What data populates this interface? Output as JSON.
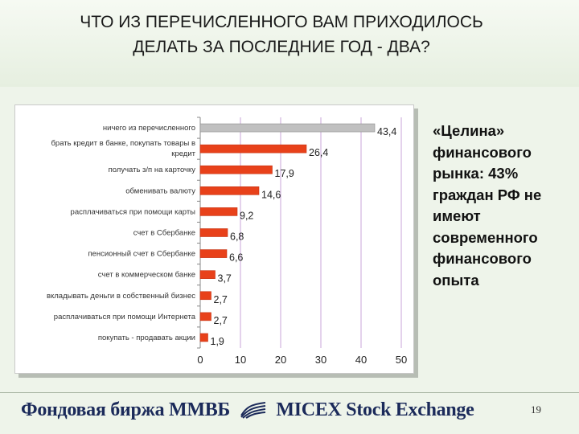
{
  "title_lines": [
    "ЧТО ИЗ ПЕРЕЧИСЛЕННОГО ВАМ ПРИХОДИЛОСЬ",
    "ДЕЛАТЬ ЗА ПОСЛЕДНИЕ ГОД - ДВА?"
  ],
  "side_text_lines": [
    "«Целина»",
    "финансового",
    "рынка: 43%",
    "граждан РФ не",
    "имеют",
    "современного",
    "финансового",
    "опыта"
  ],
  "footer": {
    "logo_left": "Фондовая биржа ММВБ",
    "logo_right": "MICEX Stock Exchange",
    "page_number": "19"
  },
  "colors": {
    "bar_highlight": "#c0c0c0",
    "bar": "#e8411a",
    "grid": "#c9a6d9",
    "background": "#eef4ea"
  },
  "chart_data": {
    "type": "bar",
    "orientation": "horizontal",
    "categories": [
      [
        "ничего из перечисленного"
      ],
      [
        "брать кредит в банке, покупать товары в",
        "кредит"
      ],
      [
        "получать з/п на карточку"
      ],
      [
        "обменивать валюту"
      ],
      [
        "расплачиваться при помощи карты"
      ],
      [
        "счет в Сбербанке"
      ],
      [
        "пенсионный счет в Сбербанке"
      ],
      [
        "счет в коммерческом банке"
      ],
      [
        "вкладывать деньги в собственный бизнес"
      ],
      [
        "расплачиваться при помощи Интернета"
      ],
      [
        "покупать - продавать акции"
      ]
    ],
    "values": [
      43.4,
      26.4,
      17.9,
      14.6,
      9.2,
      6.8,
      6.6,
      3.7,
      2.7,
      2.7,
      1.9
    ],
    "value_labels": [
      "43,4",
      "26,4",
      "17,9",
      "14,6",
      "9,2",
      "6,8",
      "6,6",
      "3,7",
      "2,7",
      "2,7",
      "1,9"
    ],
    "xlim": [
      0,
      50
    ],
    "x_ticks": [
      "0",
      "10",
      "20",
      "30",
      "40",
      "50"
    ],
    "grid": true
  }
}
